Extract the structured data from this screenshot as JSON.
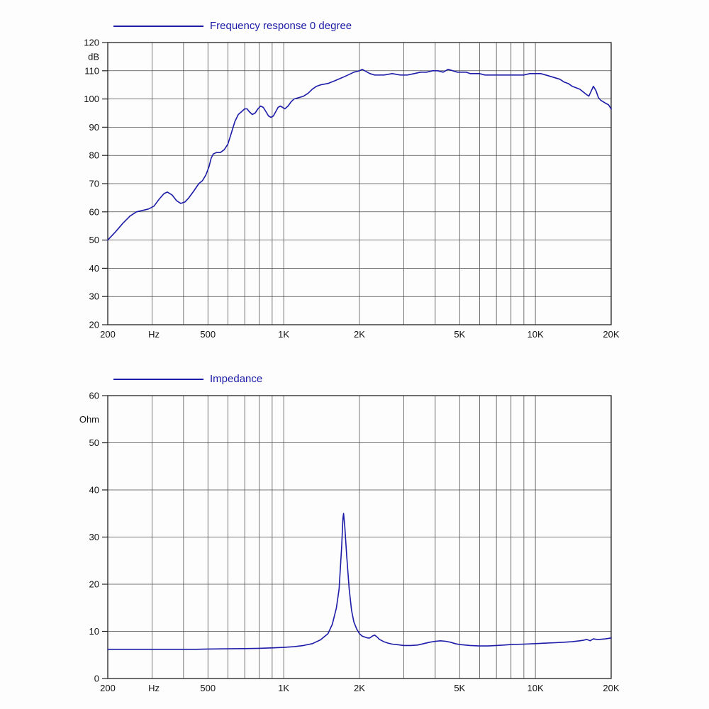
{
  "page": {
    "background": "#fdfdfd"
  },
  "colors": {
    "accent": "#1c1ca8",
    "grid": "#4a4a4a",
    "axis": "#222222"
  },
  "chart_data": [
    {
      "type": "line",
      "title": "Frequency response 0 degree",
      "xlabel": "Hz",
      "ylabel": "dB",
      "x_scale": "log",
      "xlim": [
        200,
        20000
      ],
      "ylim": [
        20,
        120
      ],
      "y_ticks": [
        20,
        30,
        40,
        50,
        60,
        70,
        80,
        90,
        100,
        110,
        120
      ],
      "x_ticks": [
        [
          200,
          "200"
        ],
        [
          500,
          "500"
        ],
        [
          1000,
          "1K"
        ],
        [
          2000,
          "2K"
        ],
        [
          5000,
          "5K"
        ],
        [
          10000,
          "10K"
        ],
        [
          20000,
          "20K"
        ]
      ],
      "x_unit_pos": 305,
      "x_gridlines": [
        200,
        300,
        400,
        500,
        600,
        700,
        800,
        900,
        1000,
        2000,
        3000,
        4000,
        5000,
        6000,
        7000,
        8000,
        9000,
        10000,
        20000
      ],
      "grid": true,
      "legend_position": "top-left",
      "line_color": "#1c1ca8",
      "points": [
        [
          200,
          50
        ],
        [
          215,
          53
        ],
        [
          230,
          56
        ],
        [
          245,
          58.5
        ],
        [
          260,
          60
        ],
        [
          275,
          60.5
        ],
        [
          290,
          61
        ],
        [
          305,
          62
        ],
        [
          320,
          64.5
        ],
        [
          335,
          66.5
        ],
        [
          345,
          67
        ],
        [
          360,
          66
        ],
        [
          375,
          64
        ],
        [
          390,
          63
        ],
        [
          405,
          63.5
        ],
        [
          420,
          65
        ],
        [
          440,
          67.5
        ],
        [
          460,
          70
        ],
        [
          475,
          71
        ],
        [
          490,
          73
        ],
        [
          505,
          76
        ],
        [
          515,
          79
        ],
        [
          525,
          80.5
        ],
        [
          540,
          81
        ],
        [
          560,
          81
        ],
        [
          580,
          82
        ],
        [
          600,
          84
        ],
        [
          620,
          88
        ],
        [
          640,
          92
        ],
        [
          660,
          94.5
        ],
        [
          680,
          95.5
        ],
        [
          700,
          96.5
        ],
        [
          715,
          96.5
        ],
        [
          730,
          95.5
        ],
        [
          750,
          94.5
        ],
        [
          770,
          95
        ],
        [
          790,
          96.5
        ],
        [
          810,
          97.5
        ],
        [
          830,
          97
        ],
        [
          850,
          95.5
        ],
        [
          870,
          94
        ],
        [
          890,
          93.5
        ],
        [
          910,
          94
        ],
        [
          930,
          95.5
        ],
        [
          950,
          97
        ],
        [
          970,
          97.5
        ],
        [
          990,
          97
        ],
        [
          1010,
          96.5
        ],
        [
          1040,
          97.5
        ],
        [
          1070,
          99
        ],
        [
          1100,
          100
        ],
        [
          1150,
          100.5
        ],
        [
          1200,
          101
        ],
        [
          1250,
          102
        ],
        [
          1300,
          103.5
        ],
        [
          1350,
          104.5
        ],
        [
          1400,
          105
        ],
        [
          1500,
          105.5
        ],
        [
          1600,
          106.5
        ],
        [
          1700,
          107.5
        ],
        [
          1800,
          108.5
        ],
        [
          1900,
          109.5
        ],
        [
          2000,
          110
        ],
        [
          2050,
          110.5
        ],
        [
          2100,
          110
        ],
        [
          2200,
          109
        ],
        [
          2300,
          108.5
        ],
        [
          2400,
          108.5
        ],
        [
          2500,
          108.5
        ],
        [
          2700,
          109
        ],
        [
          2900,
          108.5
        ],
        [
          3100,
          108.5
        ],
        [
          3300,
          109
        ],
        [
          3500,
          109.5
        ],
        [
          3700,
          109.5
        ],
        [
          3900,
          110
        ],
        [
          4100,
          110
        ],
        [
          4300,
          109.5
        ],
        [
          4500,
          110.5
        ],
        [
          4700,
          110
        ],
        [
          4900,
          109.5
        ],
        [
          5100,
          109.5
        ],
        [
          5300,
          109.5
        ],
        [
          5500,
          109
        ],
        [
          5700,
          109
        ],
        [
          6000,
          109
        ],
        [
          6300,
          108.5
        ],
        [
          6600,
          108.5
        ],
        [
          7000,
          108.5
        ],
        [
          7500,
          108.5
        ],
        [
          8000,
          108.5
        ],
        [
          8500,
          108.5
        ],
        [
          9000,
          108.5
        ],
        [
          9500,
          109
        ],
        [
          10000,
          109
        ],
        [
          10500,
          109
        ],
        [
          11000,
          108.5
        ],
        [
          11500,
          108
        ],
        [
          12000,
          107.5
        ],
        [
          12500,
          107
        ],
        [
          13000,
          106
        ],
        [
          13500,
          105.5
        ],
        [
          14000,
          104.5
        ],
        [
          14500,
          104
        ],
        [
          15000,
          103.5
        ],
        [
          15500,
          102.5
        ],
        [
          16000,
          101.5
        ],
        [
          16300,
          101
        ],
        [
          16600,
          102.5
        ],
        [
          17000,
          104.5
        ],
        [
          17400,
          103
        ],
        [
          17800,
          100.5
        ],
        [
          18200,
          99.5
        ],
        [
          18600,
          99
        ],
        [
          19000,
          98.5
        ],
        [
          19500,
          98
        ],
        [
          20000,
          96.5
        ]
      ]
    },
    {
      "type": "line",
      "title": "Impedance",
      "xlabel": "Hz",
      "ylabel": "Ohm",
      "x_scale": "log",
      "xlim": [
        200,
        20000
      ],
      "ylim": [
        0,
        60
      ],
      "y_ticks": [
        0,
        10,
        20,
        30,
        40,
        50,
        60
      ],
      "x_ticks": [
        [
          200,
          "200"
        ],
        [
          500,
          "500"
        ],
        [
          1000,
          "1K"
        ],
        [
          2000,
          "2K"
        ],
        [
          5000,
          "5K"
        ],
        [
          10000,
          "10K"
        ],
        [
          20000,
          "20K"
        ]
      ],
      "x_unit_pos": 305,
      "x_gridlines": [
        200,
        300,
        400,
        500,
        600,
        700,
        800,
        900,
        1000,
        2000,
        3000,
        4000,
        5000,
        6000,
        7000,
        8000,
        9000,
        10000,
        20000
      ],
      "grid": true,
      "legend_position": "top-left",
      "line_color": "#1c1ca8",
      "points": [
        [
          200,
          6.2
        ],
        [
          250,
          6.2
        ],
        [
          300,
          6.2
        ],
        [
          350,
          6.2
        ],
        [
          400,
          6.2
        ],
        [
          450,
          6.2
        ],
        [
          500,
          6.25
        ],
        [
          600,
          6.3
        ],
        [
          700,
          6.35
        ],
        [
          800,
          6.4
        ],
        [
          900,
          6.5
        ],
        [
          1000,
          6.6
        ],
        [
          1100,
          6.75
        ],
        [
          1200,
          7.0
        ],
        [
          1300,
          7.4
        ],
        [
          1400,
          8.2
        ],
        [
          1500,
          9.5
        ],
        [
          1560,
          11.5
        ],
        [
          1620,
          15
        ],
        [
          1660,
          19
        ],
        [
          1700,
          28
        ],
        [
          1720,
          34
        ],
        [
          1730,
          35
        ],
        [
          1750,
          32
        ],
        [
          1780,
          26
        ],
        [
          1820,
          19
        ],
        [
          1860,
          14.5
        ],
        [
          1900,
          12
        ],
        [
          1950,
          10.5
        ],
        [
          2000,
          9.5
        ],
        [
          2050,
          9.0
        ],
        [
          2100,
          8.8
        ],
        [
          2150,
          8.6
        ],
        [
          2200,
          8.6
        ],
        [
          2250,
          9.0
        ],
        [
          2300,
          9.2
        ],
        [
          2350,
          8.8
        ],
        [
          2400,
          8.3
        ],
        [
          2500,
          7.8
        ],
        [
          2600,
          7.5
        ],
        [
          2700,
          7.3
        ],
        [
          2800,
          7.2
        ],
        [
          3000,
          7.0
        ],
        [
          3200,
          7.0
        ],
        [
          3400,
          7.1
        ],
        [
          3600,
          7.4
        ],
        [
          3800,
          7.7
        ],
        [
          4000,
          7.9
        ],
        [
          4200,
          8.0
        ],
        [
          4400,
          7.9
        ],
        [
          4600,
          7.7
        ],
        [
          4800,
          7.4
        ],
        [
          5000,
          7.2
        ],
        [
          5500,
          7.0
        ],
        [
          6000,
          6.9
        ],
        [
          6500,
          6.9
        ],
        [
          7000,
          7.0
        ],
        [
          7500,
          7.1
        ],
        [
          8000,
          7.2
        ],
        [
          9000,
          7.3
        ],
        [
          10000,
          7.4
        ],
        [
          11000,
          7.5
        ],
        [
          12000,
          7.6
        ],
        [
          13000,
          7.7
        ],
        [
          14000,
          7.8
        ],
        [
          15000,
          8.0
        ],
        [
          15500,
          8.1
        ],
        [
          16000,
          8.3
        ],
        [
          16500,
          8.0
        ],
        [
          17000,
          8.4
        ],
        [
          17500,
          8.3
        ],
        [
          18000,
          8.3
        ],
        [
          19000,
          8.4
        ],
        [
          20000,
          8.6
        ]
      ]
    }
  ]
}
